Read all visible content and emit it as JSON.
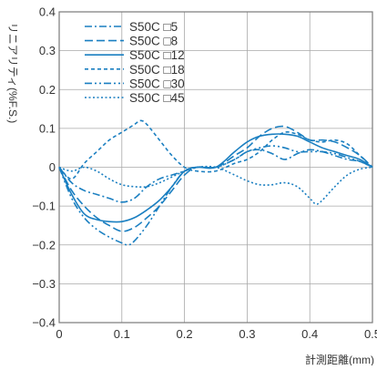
{
  "chart_data": {
    "type": "line",
    "title": "",
    "xlabel": "計測距離(mm)",
    "ylabel": "リニアリティ(%F.S.)",
    "xlim": [
      0,
      0.5
    ],
    "ylim": [
      -0.4,
      0.4
    ],
    "x_ticks": [
      0,
      0.1,
      0.2,
      0.3,
      0.4,
      0.5
    ],
    "x_tick_labels": [
      "0",
      "0.1",
      "0.2",
      "0.3",
      "0.4",
      "0.5"
    ],
    "y_ticks": [
      0.4,
      0.3,
      0.2,
      0.1,
      0,
      -0.1,
      -0.2,
      -0.3,
      -0.4
    ],
    "y_tick_labels": [
      "0.4",
      "0.3",
      "0.2",
      "0.1",
      "0",
      "−0.1",
      "−0.2",
      "−0.3",
      "−0.4"
    ],
    "grid": true,
    "legend_position": "top-left",
    "line_color": "#1a7fc1",
    "series": [
      {
        "name": "S50C □5",
        "dash": "dash-dot",
        "x": [
          0,
          0.02,
          0.04,
          0.06,
          0.08,
          0.1,
          0.12,
          0.14,
          0.16,
          0.18,
          0.2,
          0.22,
          0.25,
          0.28,
          0.3,
          0.32,
          0.34,
          0.36,
          0.38,
          0.4,
          0.42,
          0.44,
          0.46,
          0.48,
          0.5
        ],
        "y": [
          0,
          -0.04,
          -0.06,
          -0.07,
          -0.08,
          -0.09,
          -0.08,
          -0.05,
          -0.03,
          -0.02,
          -0.01,
          0.0,
          0.0,
          0.02,
          0.04,
          0.045,
          0.035,
          0.02,
          0.035,
          0.045,
          0.04,
          0.03,
          0.02,
          0.015,
          0
        ]
      },
      {
        "name": "S50C □8",
        "dash": "long-dash",
        "x": [
          0,
          0.02,
          0.04,
          0.06,
          0.08,
          0.1,
          0.12,
          0.14,
          0.16,
          0.18,
          0.2,
          0.22,
          0.25,
          0.28,
          0.3,
          0.32,
          0.34,
          0.36,
          0.38,
          0.4,
          0.42,
          0.44,
          0.46,
          0.48,
          0.5
        ],
        "y": [
          0,
          -0.06,
          -0.1,
          -0.13,
          -0.15,
          -0.165,
          -0.155,
          -0.13,
          -0.1,
          -0.06,
          -0.02,
          0.0,
          0.0,
          0.03,
          0.05,
          0.08,
          0.1,
          0.105,
          0.09,
          0.07,
          0.07,
          0.065,
          0.05,
          0.03,
          0
        ]
      },
      {
        "name": "S50C □12",
        "dash": "solid",
        "x": [
          0,
          0.02,
          0.04,
          0.06,
          0.08,
          0.1,
          0.12,
          0.14,
          0.16,
          0.18,
          0.2,
          0.22,
          0.25,
          0.28,
          0.3,
          0.32,
          0.34,
          0.36,
          0.38,
          0.4,
          0.42,
          0.44,
          0.46,
          0.48,
          0.5
        ],
        "y": [
          0,
          -0.07,
          -0.12,
          -0.135,
          -0.14,
          -0.14,
          -0.13,
          -0.11,
          -0.085,
          -0.05,
          -0.01,
          0.0,
          0.0,
          0.04,
          0.065,
          0.08,
          0.085,
          0.085,
          0.08,
          0.065,
          0.05,
          0.04,
          0.03,
          0.02,
          0
        ]
      },
      {
        "name": "S50C □18",
        "dash": "dash",
        "x": [
          0,
          0.02,
          0.04,
          0.06,
          0.08,
          0.1,
          0.12,
          0.13,
          0.14,
          0.16,
          0.18,
          0.2,
          0.22,
          0.25,
          0.28,
          0.3,
          0.32,
          0.34,
          0.36,
          0.38,
          0.4,
          0.42,
          0.44,
          0.46,
          0.48,
          0.5
        ],
        "y": [
          0,
          -0.03,
          0.01,
          0.04,
          0.07,
          0.09,
          0.11,
          0.12,
          0.11,
          0.07,
          0.03,
          0.0,
          -0.01,
          -0.01,
          0.01,
          0.02,
          0.04,
          0.07,
          0.09,
          0.085,
          0.07,
          0.065,
          0.07,
          0.06,
          0.03,
          0
        ]
      },
      {
        "name": "S50C □30",
        "dash": "dash-dot-dot",
        "x": [
          0,
          0.02,
          0.04,
          0.06,
          0.08,
          0.1,
          0.11,
          0.12,
          0.14,
          0.16,
          0.18,
          0.2,
          0.22,
          0.25,
          0.28,
          0.3,
          0.32,
          0.34,
          0.36,
          0.38,
          0.4,
          0.42,
          0.44,
          0.46,
          0.48,
          0.5
        ],
        "y": [
          0,
          -0.08,
          -0.13,
          -0.16,
          -0.18,
          -0.195,
          -0.2,
          -0.19,
          -0.15,
          -0.1,
          -0.05,
          -0.01,
          0.0,
          0.0,
          0.02,
          0.04,
          0.05,
          0.055,
          0.05,
          0.04,
          0.04,
          0.04,
          0.035,
          0.025,
          0.015,
          0
        ]
      },
      {
        "name": "S50C □45",
        "dash": "dotted",
        "x": [
          0,
          0.02,
          0.04,
          0.06,
          0.08,
          0.1,
          0.12,
          0.14,
          0.16,
          0.18,
          0.2,
          0.22,
          0.25,
          0.28,
          0.3,
          0.32,
          0.34,
          0.36,
          0.38,
          0.4,
          0.41,
          0.42,
          0.44,
          0.46,
          0.48,
          0.5
        ],
        "y": [
          0,
          -0.01,
          0.0,
          -0.01,
          -0.03,
          -0.045,
          -0.05,
          -0.05,
          -0.04,
          -0.025,
          -0.01,
          0.0,
          0.0,
          -0.02,
          -0.035,
          -0.045,
          -0.045,
          -0.04,
          -0.05,
          -0.08,
          -0.095,
          -0.085,
          -0.05,
          -0.02,
          -0.005,
          0
        ]
      }
    ]
  }
}
